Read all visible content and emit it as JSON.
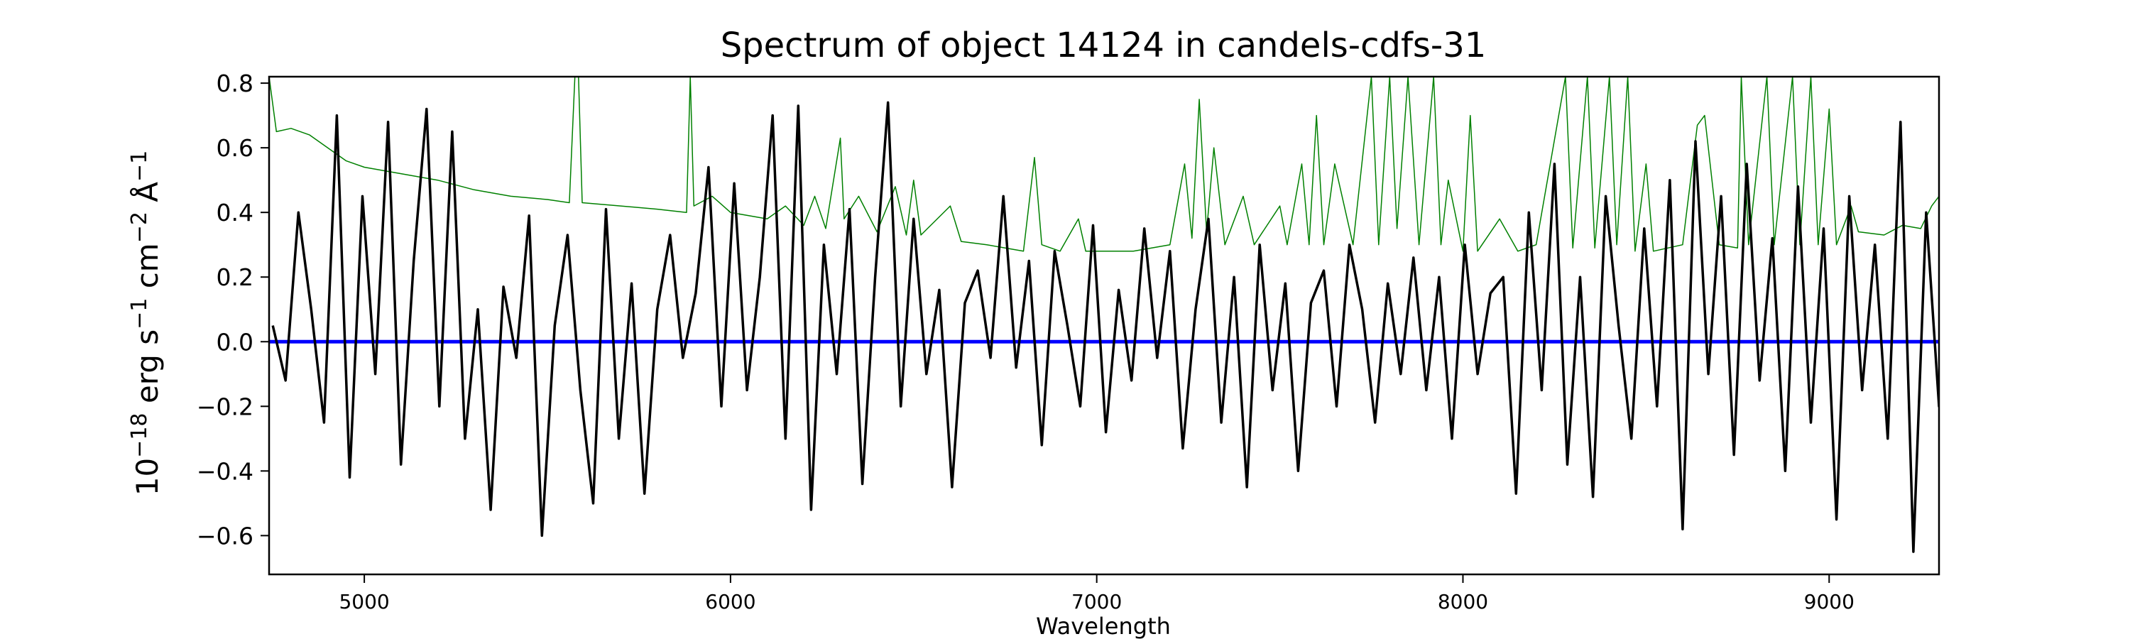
{
  "chart_data": {
    "type": "line",
    "title": "Spectrum of object 14124 in candels-cdfs-31",
    "xlabel": "Wavelength",
    "ylabel_parts": {
      "base": "10",
      "exp1": "−18",
      "unit1": " erg s",
      "exp2": "−1",
      "unit2": " cm",
      "exp3": "−2",
      "unit3": " Å",
      "exp4": "−1"
    },
    "xlim": [
      4740,
      9300
    ],
    "ylim": [
      -0.72,
      0.82
    ],
    "xticks": [
      {
        "value": 5000,
        "label": "5000"
      },
      {
        "value": 6000,
        "label": "6000"
      },
      {
        "value": 7000,
        "label": "7000"
      },
      {
        "value": 8000,
        "label": "8000"
      },
      {
        "value": 9000,
        "label": "9000"
      }
    ],
    "yticks": [
      {
        "value": 0.8,
        "label": "0.8"
      },
      {
        "value": 0.6,
        "label": "0.6"
      },
      {
        "value": 0.4,
        "label": "0.4"
      },
      {
        "value": 0.2,
        "label": "0.2"
      },
      {
        "value": 0.0,
        "label": "0.0"
      },
      {
        "value": -0.2,
        "label": "−0.2"
      },
      {
        "value": -0.4,
        "label": "−0.4"
      },
      {
        "value": -0.6,
        "label": "−0.6"
      }
    ],
    "series": [
      {
        "name": "flux",
        "color": "#000000",
        "x_start": 4750,
        "x_step": 35,
        "values": [
          0.05,
          -0.12,
          0.4,
          0.1,
          -0.25,
          0.7,
          -0.42,
          0.45,
          -0.1,
          0.68,
          -0.38,
          0.25,
          0.72,
          -0.2,
          0.65,
          -0.3,
          0.1,
          -0.52,
          0.17,
          -0.05,
          0.39,
          -0.6,
          0.05,
          0.33,
          -0.15,
          -0.5,
          0.41,
          -0.3,
          0.18,
          -0.47,
          0.1,
          0.33,
          -0.05,
          0.15,
          0.54,
          -0.2,
          0.49,
          -0.15,
          0.2,
          0.7,
          -0.3,
          0.73,
          -0.52,
          0.3,
          -0.1,
          0.41,
          -0.44,
          0.2,
          0.74,
          -0.2,
          0.38,
          -0.1,
          0.16,
          -0.45,
          0.12,
          0.22,
          -0.05,
          0.45,
          -0.08,
          0.25,
          -0.32,
          0.28,
          0.05,
          -0.2,
          0.36,
          -0.28,
          0.16,
          -0.12,
          0.35,
          -0.05,
          0.28,
          -0.33,
          0.1,
          0.38,
          -0.25,
          0.2,
          -0.45,
          0.3,
          -0.15,
          0.18,
          -0.4,
          0.12,
          0.22,
          -0.2,
          0.3,
          0.1,
          -0.25,
          0.18,
          -0.1,
          0.26,
          -0.15,
          0.2,
          -0.3,
          0.3,
          -0.1,
          0.15,
          0.2,
          -0.47,
          0.4,
          -0.15,
          0.55,
          -0.38,
          0.2,
          -0.48,
          0.45,
          0.05,
          -0.3,
          0.35,
          -0.2,
          0.5,
          -0.58,
          0.62,
          -0.1,
          0.45,
          -0.35,
          0.55,
          -0.12,
          0.32,
          -0.4,
          0.48,
          -0.25,
          0.35,
          -0.55,
          0.45,
          -0.15,
          0.3,
          -0.3,
          0.68,
          -0.65,
          0.4,
          -0.2,
          0.3,
          -0.4
        ]
      },
      {
        "name": "error",
        "color": "#008000",
        "points": [
          [
            4740,
            0.82
          ],
          [
            4760,
            0.65
          ],
          [
            4800,
            0.66
          ],
          [
            4850,
            0.64
          ],
          [
            4900,
            0.6
          ],
          [
            4950,
            0.56
          ],
          [
            5000,
            0.54
          ],
          [
            5100,
            0.52
          ],
          [
            5200,
            0.5
          ],
          [
            5300,
            0.47
          ],
          [
            5400,
            0.45
          ],
          [
            5500,
            0.44
          ],
          [
            5560,
            0.43
          ],
          [
            5575,
            0.82
          ],
          [
            5585,
            0.82
          ],
          [
            5595,
            0.43
          ],
          [
            5700,
            0.42
          ],
          [
            5800,
            0.41
          ],
          [
            5880,
            0.4
          ],
          [
            5890,
            0.82
          ],
          [
            5900,
            0.42
          ],
          [
            5950,
            0.45
          ],
          [
            6000,
            0.4
          ],
          [
            6100,
            0.38
          ],
          [
            6150,
            0.42
          ],
          [
            6200,
            0.36
          ],
          [
            6230,
            0.45
          ],
          [
            6260,
            0.35
          ],
          [
            6300,
            0.63
          ],
          [
            6310,
            0.38
          ],
          [
            6350,
            0.45
          ],
          [
            6400,
            0.34
          ],
          [
            6450,
            0.48
          ],
          [
            6480,
            0.33
          ],
          [
            6500,
            0.5
          ],
          [
            6520,
            0.33
          ],
          [
            6600,
            0.42
          ],
          [
            6630,
            0.31
          ],
          [
            6700,
            0.3
          ],
          [
            6800,
            0.28
          ],
          [
            6830,
            0.57
          ],
          [
            6850,
            0.3
          ],
          [
            6900,
            0.28
          ],
          [
            6950,
            0.38
          ],
          [
            6970,
            0.28
          ],
          [
            7100,
            0.28
          ],
          [
            7200,
            0.3
          ],
          [
            7240,
            0.55
          ],
          [
            7260,
            0.32
          ],
          [
            7280,
            0.75
          ],
          [
            7300,
            0.34
          ],
          [
            7320,
            0.6
          ],
          [
            7350,
            0.3
          ],
          [
            7400,
            0.45
          ],
          [
            7430,
            0.3
          ],
          [
            7500,
            0.42
          ],
          [
            7520,
            0.3
          ],
          [
            7560,
            0.55
          ],
          [
            7580,
            0.3
          ],
          [
            7600,
            0.7
          ],
          [
            7620,
            0.3
          ],
          [
            7650,
            0.55
          ],
          [
            7700,
            0.3
          ],
          [
            7750,
            0.82
          ],
          [
            7770,
            0.3
          ],
          [
            7800,
            0.82
          ],
          [
            7820,
            0.35
          ],
          [
            7850,
            0.82
          ],
          [
            7880,
            0.3
          ],
          [
            7920,
            0.82
          ],
          [
            7940,
            0.3
          ],
          [
            7960,
            0.5
          ],
          [
            8000,
            0.28
          ],
          [
            8020,
            0.7
          ],
          [
            8040,
            0.28
          ],
          [
            8100,
            0.38
          ],
          [
            8150,
            0.28
          ],
          [
            8200,
            0.3
          ],
          [
            8280,
            0.82
          ],
          [
            8300,
            0.29
          ],
          [
            8340,
            0.82
          ],
          [
            8360,
            0.29
          ],
          [
            8400,
            0.82
          ],
          [
            8420,
            0.3
          ],
          [
            8450,
            0.82
          ],
          [
            8470,
            0.28
          ],
          [
            8500,
            0.55
          ],
          [
            8520,
            0.28
          ],
          [
            8600,
            0.3
          ],
          [
            8640,
            0.67
          ],
          [
            8660,
            0.7
          ],
          [
            8700,
            0.3
          ],
          [
            8750,
            0.29
          ],
          [
            8760,
            0.82
          ],
          [
            8780,
            0.3
          ],
          [
            8830,
            0.82
          ],
          [
            8850,
            0.3
          ],
          [
            8900,
            0.82
          ],
          [
            8920,
            0.3
          ],
          [
            8950,
            0.82
          ],
          [
            8970,
            0.3
          ],
          [
            9000,
            0.72
          ],
          [
            9020,
            0.3
          ],
          [
            9060,
            0.42
          ],
          [
            9080,
            0.34
          ],
          [
            9150,
            0.33
          ],
          [
            9200,
            0.36
          ],
          [
            9250,
            0.35
          ],
          [
            9280,
            0.42
          ],
          [
            9300,
            0.45
          ]
        ]
      },
      {
        "name": "zero-line",
        "color": "#0000ff",
        "points": [
          [
            4740,
            0
          ],
          [
            9300,
            0
          ]
        ]
      }
    ],
    "grid": false,
    "legend": "none"
  }
}
